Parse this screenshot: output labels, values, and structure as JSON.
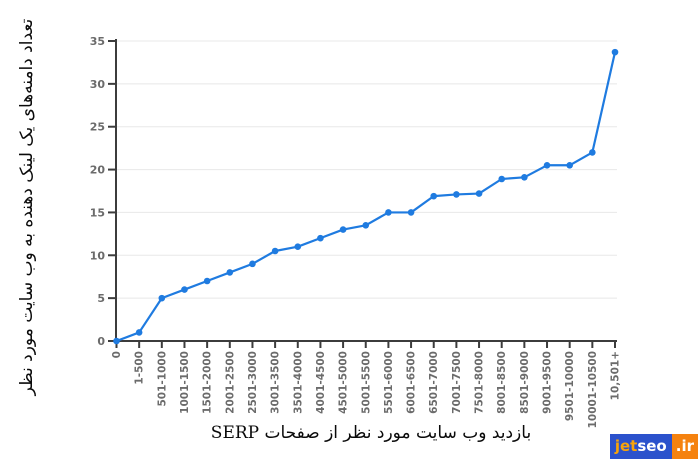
{
  "chart_data": {
    "type": "line",
    "title": "",
    "xlabel": "بازدید وب سایت مورد نظر از صفحات SERP",
    "ylabel": "تعداد دامنه‌های یک لینک دهنده به وب سایت مورد نظر",
    "categories": [
      "0",
      "1-500",
      "501-1000",
      "1001-1500",
      "1501-2000",
      "2001-2500",
      "2501-3000",
      "3001-3500",
      "3501-4000",
      "4001-4500",
      "4501-5000",
      "5001-5500",
      "5501-6000",
      "6001-6500",
      "6501-7000",
      "7001-7500",
      "7501-8000",
      "8001-8500",
      "8501-9000",
      "9001-9500",
      "9501-10000",
      "10001-10500",
      "10,501+"
    ],
    "values": [
      0,
      1,
      5,
      6,
      7,
      8,
      9,
      10.5,
      11,
      12,
      13,
      13.5,
      15,
      15,
      16.9,
      17.1,
      17.2,
      18.9,
      19.1,
      20.5,
      20.5,
      22,
      33.7
    ],
    "ylim": [
      0,
      35
    ],
    "yticks": [
      0,
      5,
      10,
      15,
      20,
      25,
      30,
      35
    ],
    "grid": true,
    "legend": "none",
    "line_color": "#1f7be0",
    "marker_color": "#1f7be0",
    "axis_color": "#3c3c3c",
    "grid_color": "#e8e8e8",
    "tick_label_color": "#6b6b6b"
  },
  "watermark": {
    "part_jet": "jet",
    "part_seo": "seo",
    "part_ir": ".ir",
    "blue_bg": "#2b52cc",
    "orange_bg": "#f5820f",
    "jet_color": "#f9a408",
    "seo_color": "#ffffff",
    "ir_color": "#ffffff"
  }
}
